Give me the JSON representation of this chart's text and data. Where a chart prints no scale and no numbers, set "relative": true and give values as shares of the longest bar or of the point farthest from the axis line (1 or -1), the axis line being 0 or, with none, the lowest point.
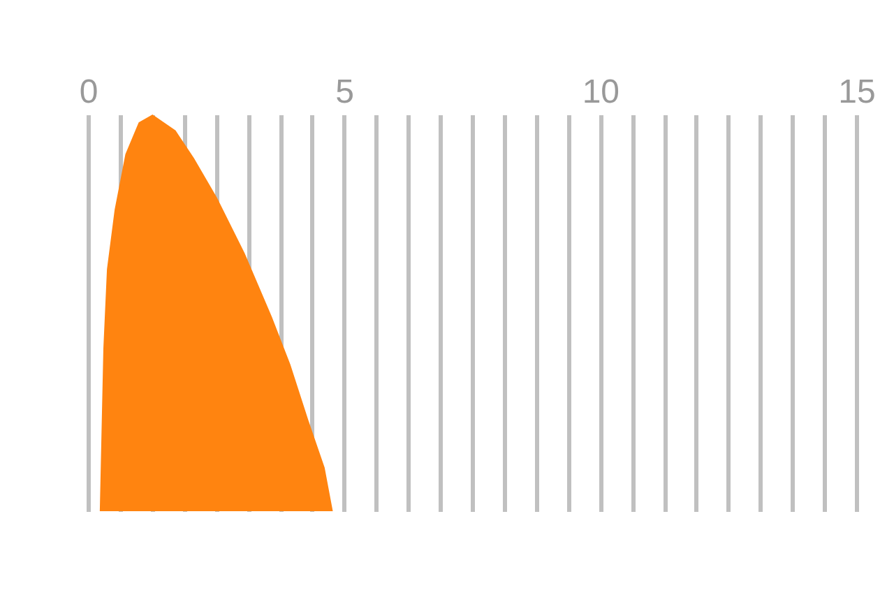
{
  "chart_data": {
    "type": "area",
    "relative": true,
    "grid": "x",
    "x": [
      0.23,
      0.3,
      0.37,
      0.52,
      0.73,
      0.99,
      1.26,
      1.71,
      2.07,
      2.52,
      3.06,
      3.59,
      3.95,
      4.3,
      4.62,
      4.78
    ],
    "series": [
      {
        "color": "#ff8410",
        "values": [
          0,
          0.41,
          0.61,
          0.76,
          0.9,
          0.98,
          1.0,
          0.96,
          0.89,
          0.79,
          0.65,
          0.49,
          0.37,
          0.23,
          0.11,
          0
        ]
      }
    ],
    "xlim": [
      0,
      15
    ],
    "xticks": [
      0,
      {
        "value": 0.625,
        "label": null
      },
      {
        "value": 1.25,
        "label": null
      },
      {
        "value": 1.875,
        "label": null
      },
      {
        "value": 2.5,
        "label": null
      },
      {
        "value": 3.125,
        "label": null
      },
      {
        "value": 3.75,
        "label": null
      },
      {
        "value": 4.375,
        "label": null
      },
      5,
      {
        "value": 5.625,
        "label": null
      },
      {
        "value": 6.25,
        "label": null
      },
      {
        "value": 6.875,
        "label": null
      },
      {
        "value": 7.5,
        "label": null
      },
      {
        "value": 8.125,
        "label": null
      },
      {
        "value": 8.75,
        "label": null
      },
      {
        "value": 9.375,
        "label": null
      },
      10,
      {
        "value": 10.625,
        "label": null
      },
      {
        "value": 11.25,
        "label": null
      },
      {
        "value": 11.875,
        "label": null
      },
      {
        "value": 12.5,
        "label": null
      },
      {
        "value": 13.125,
        "label": null
      },
      {
        "value": 13.75,
        "label": null
      },
      {
        "value": 14.375,
        "label": null
      },
      15
    ]
  }
}
